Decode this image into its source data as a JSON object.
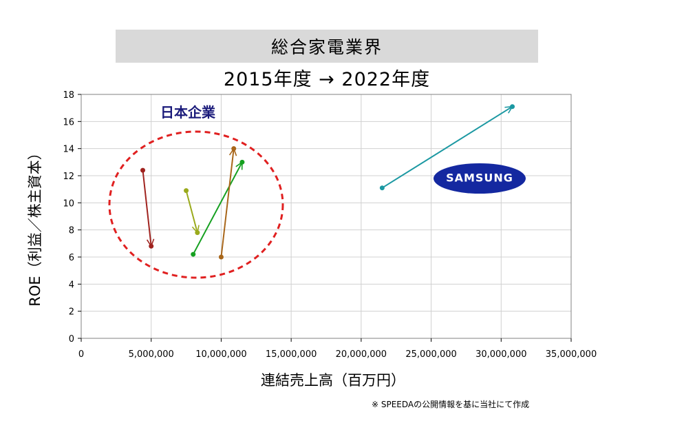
{
  "title": "総合家電業界",
  "subtitle": "2015年度 → 2022年度",
  "source_note": "※ SPEEDAの公開情報を基に当社にて作成",
  "annotations": {
    "japan_group_label": "日本企業",
    "samsung_logo_text": "SAMSUNG"
  },
  "colors": {
    "plot_border": "#808080",
    "grid": "#d0d0d0",
    "ellipse": "#e02020",
    "samsung_logo_bg": "#1428a0",
    "samsung_logo_text": "#ffffff"
  },
  "chart_data": {
    "type": "scatter",
    "title": "総合家電業界",
    "subtitle": "2015年度 → 2022年度",
    "xlabel": "連結売上高（百万円）",
    "ylabel": "ROE（利益／株主資本）",
    "xlim": [
      0,
      35000000
    ],
    "ylim": [
      0,
      18
    ],
    "x_ticks": [
      0,
      5000000,
      10000000,
      15000000,
      20000000,
      25000000,
      30000000,
      35000000
    ],
    "x_tick_labels": [
      "0",
      "5,000,000",
      "10,000,000",
      "15,000,000",
      "20,000,000",
      "25,000,000",
      "30,000,000",
      "35,000,000"
    ],
    "y_ticks": [
      0,
      2,
      4,
      6,
      8,
      10,
      12,
      14,
      16,
      18
    ],
    "y_tick_labels": [
      "0",
      "2",
      "4",
      "6",
      "8",
      "10",
      "12",
      "14",
      "16",
      "18"
    ],
    "grid": true,
    "series": [
      {
        "color": "#a0231f",
        "points": [
          {
            "x": 4400000,
            "y": 12.4
          },
          {
            "x": 5000000,
            "y": 6.8
          }
        ]
      },
      {
        "color": "#9aaa1c",
        "points": [
          {
            "x": 7500000,
            "y": 10.9
          },
          {
            "x": 8300000,
            "y": 7.8
          }
        ]
      },
      {
        "color": "#15a020",
        "points": [
          {
            "x": 8000000,
            "y": 6.2
          },
          {
            "x": 11500000,
            "y": 13.0
          }
        ]
      },
      {
        "color": "#a8661a",
        "points": [
          {
            "x": 10000000,
            "y": 6.0
          },
          {
            "x": 10900000,
            "y": 14.0
          }
        ]
      },
      {
        "color": "#1b98a2",
        "points": [
          {
            "x": 21500000,
            "y": 11.1
          },
          {
            "x": 30800000,
            "y": 17.1
          }
        ]
      }
    ]
  }
}
